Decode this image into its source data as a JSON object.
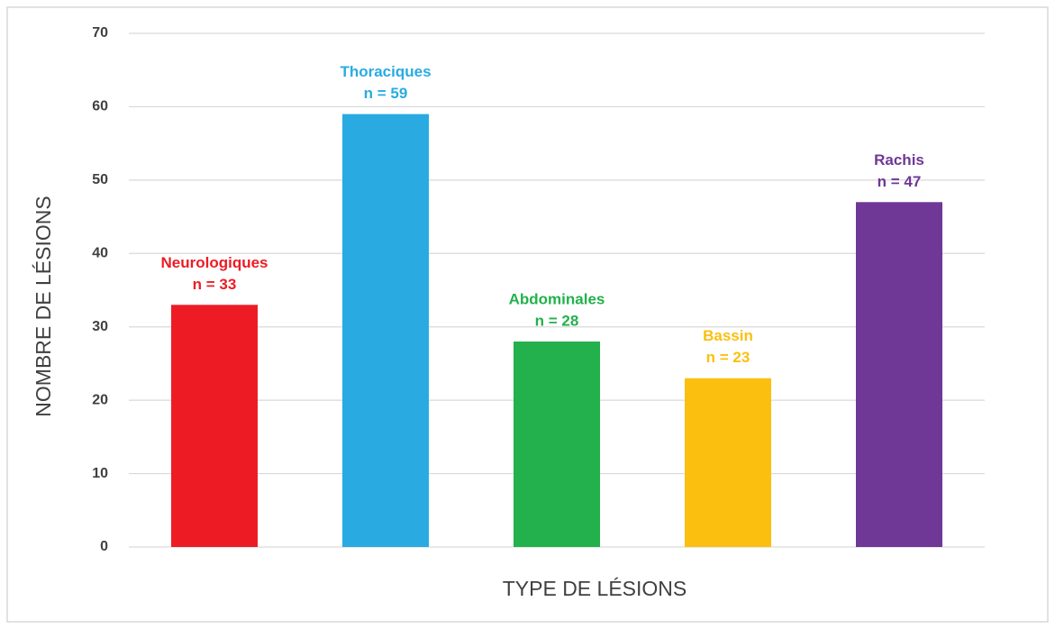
{
  "chart_data": {
    "type": "bar",
    "categories": [
      "Neurologiques",
      "Thoraciques",
      "Abdominales",
      "Bassin",
      "Rachis"
    ],
    "values": [
      33,
      59,
      28,
      23,
      47
    ],
    "value_labels": [
      "n = 33",
      "n = 59",
      "n = 28",
      "n = 23",
      "n = 47"
    ],
    "colors": [
      "#ed1c24",
      "#29abe2",
      "#22b14c",
      "#fbbf10",
      "#6f3796"
    ],
    "x_label": "TYPE DE LÉSIONS",
    "y_label": "NOMBRE DE LÉSIONS",
    "ylim": [
      0,
      70
    ],
    "yticks": [
      0,
      10,
      20,
      30,
      40,
      50,
      60,
      70
    ],
    "grid": true
  }
}
